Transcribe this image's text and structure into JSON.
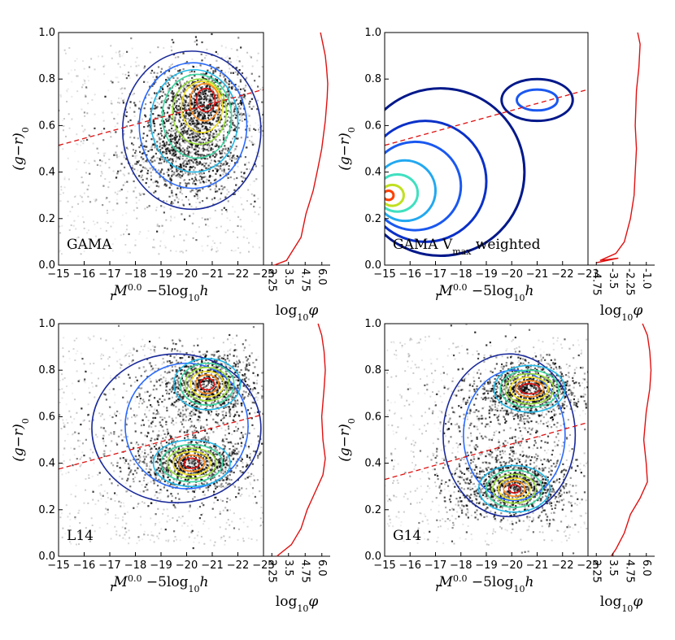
{
  "chart_data": [
    {
      "type": "scatter",
      "label": "GAMA",
      "xlabel_main": "M",
      "xlabel_sup": "0.0",
      "xlabel_sub": "r",
      "xlabel_rest": " −5log",
      "xlabel_sub2": "10",
      "xlabel_end": "h",
      "ylabel_main": "(g−r)",
      "ylabel_sub": "0",
      "xticks": [
        "−15",
        "−16",
        "−17",
        "−18",
        "−19",
        "−20",
        "−21",
        "−22",
        "−23"
      ],
      "xlim": [
        -15,
        -23
      ],
      "yticks": [
        "0.0",
        "0.2",
        "0.4",
        "0.6",
        "0.8",
        "1.0"
      ],
      "ylim": [
        0,
        1
      ],
      "side_xticks": [
        "2.25",
        "3.5",
        "4.75",
        "6.0"
      ],
      "side_xlim": [
        1.5,
        7.0
      ],
      "side_xlabel_main": "log",
      "side_xlabel_sub": "10",
      "side_xlabel_end": "φ",
      "divider": [
        [
          -15,
          0.515
        ],
        [
          -23,
          0.755
        ]
      ],
      "density": [
        {
          "x": -20.6,
          "y": 0.7,
          "sx": 0.9,
          "sy": 0.08,
          "w": 1.0
        },
        {
          "x": -20.0,
          "y": 0.48,
          "sx": 1.0,
          "sy": 0.1,
          "w": 0.8
        },
        {
          "x": -19.8,
          "y": 0.55,
          "sx": 1.6,
          "sy": 0.16,
          "w": 0.55
        }
      ],
      "contours": [
        {
          "color": "#1a2a9a",
          "cx": -20.2,
          "cy": 0.58,
          "rx": 2.7,
          "ry": 0.34
        },
        {
          "color": "#2a6aff",
          "cx": -20.25,
          "cy": 0.6,
          "rx": 2.1,
          "ry": 0.27
        },
        {
          "color": "#22b8e8",
          "cx": -20.3,
          "cy": 0.62,
          "rx": 1.7,
          "ry": 0.22
        },
        {
          "color": "#3ad6a0",
          "cx": -20.4,
          "cy": 0.64,
          "rx": 1.35,
          "ry": 0.18
        },
        {
          "color": "#9ae03a",
          "cx": -20.5,
          "cy": 0.66,
          "rx": 1.05,
          "ry": 0.14
        },
        {
          "color": "#f0e020",
          "cx": -20.6,
          "cy": 0.68,
          "rx": 0.8,
          "ry": 0.11
        },
        {
          "color": "#ff8a1a",
          "cx": -20.7,
          "cy": 0.7,
          "rx": 0.58,
          "ry": 0.08
        },
        {
          "color": "#e01010",
          "cx": -20.75,
          "cy": 0.71,
          "rx": 0.36,
          "ry": 0.05
        }
      ],
      "side_curve": [
        [
          6.2,
          1.0
        ],
        [
          6.4,
          0.95
        ],
        [
          6.6,
          0.9
        ],
        [
          6.7,
          0.85
        ],
        [
          6.8,
          0.78
        ],
        [
          6.75,
          0.72
        ],
        [
          6.6,
          0.62
        ],
        [
          6.3,
          0.5
        ],
        [
          6.0,
          0.42
        ],
        [
          5.6,
          0.32
        ],
        [
          5.0,
          0.22
        ],
        [
          4.6,
          0.12
        ],
        [
          3.4,
          0.02
        ],
        [
          2.4,
          0.0
        ]
      ]
    },
    {
      "type": "scatter",
      "label": "GAMA V",
      "label_sub": "max",
      "label_rest": " weighted",
      "xlabel_main": "M",
      "xlabel_sup": "0.0",
      "xlabel_sub": "r",
      "xlabel_rest": " −5log",
      "xlabel_sub2": "10",
      "xlabel_end": "h",
      "ylabel_main": "(g−r)",
      "ylabel_sub": "0",
      "xticks": [
        "−15",
        "−16",
        "−17",
        "−18",
        "−19",
        "−20",
        "−21",
        "−22",
        "−23"
      ],
      "xlim": [
        -15,
        -23
      ],
      "yticks": [
        "0.0",
        "0.2",
        "0.4",
        "0.6",
        "0.8",
        "1.0"
      ],
      "ylim": [
        0,
        1
      ],
      "side_xticks": [
        "-4.75",
        "-3.5",
        "-2.25",
        "-1.0"
      ],
      "side_xlim": [
        -5.5,
        0.0
      ],
      "side_xlabel_main": "log",
      "side_xlabel_sub": "10",
      "side_xlabel_end": "φ",
      "divider": [
        [
          -15,
          0.515
        ],
        [
          -23,
          0.755
        ]
      ],
      "density": [],
      "contours": [
        {
          "color": "#00188a",
          "cx": -17.2,
          "cy": 0.4,
          "rx": 3.3,
          "ry": 0.36
        },
        {
          "color": "#0a30c8",
          "cx": -16.6,
          "cy": 0.36,
          "rx": 2.4,
          "ry": 0.26
        },
        {
          "color": "#1a58f0",
          "cx": -16.2,
          "cy": 0.34,
          "rx": 1.8,
          "ry": 0.19
        },
        {
          "color": "#22a8f0",
          "cx": -15.8,
          "cy": 0.32,
          "rx": 1.2,
          "ry": 0.13
        },
        {
          "color": "#40e0c0",
          "cx": -15.5,
          "cy": 0.31,
          "rx": 0.8,
          "ry": 0.08
        },
        {
          "color": "#c0e020",
          "cx": -15.3,
          "cy": 0.3,
          "rx": 0.45,
          "ry": 0.045
        },
        {
          "color": "#ff4000",
          "cx": -15.15,
          "cy": 0.3,
          "rx": 0.2,
          "ry": 0.02
        }
      ],
      "extra_contours": [
        {
          "color": "#00188a",
          "cx": -21.0,
          "cy": 0.71,
          "rx": 1.4,
          "ry": 0.09
        },
        {
          "color": "#1a58f0",
          "cx": -21.0,
          "cy": 0.71,
          "rx": 0.8,
          "ry": 0.045
        }
      ],
      "side_curve": [
        [
          -1.4,
          1.0
        ],
        [
          -1.2,
          0.95
        ],
        [
          -1.3,
          0.85
        ],
        [
          -1.5,
          0.75
        ],
        [
          -1.6,
          0.6
        ],
        [
          -1.5,
          0.5
        ],
        [
          -1.6,
          0.4
        ],
        [
          -1.7,
          0.3
        ],
        [
          -2.0,
          0.2
        ],
        [
          -2.5,
          0.1
        ],
        [
          -3.2,
          0.05
        ],
        [
          -4.5,
          0.02
        ],
        [
          -3.0,
          0.03
        ],
        [
          -4.8,
          0.01
        ]
      ]
    },
    {
      "type": "scatter",
      "label": "L14",
      "xlabel_main": "M",
      "xlabel_sup": "0.0",
      "xlabel_sub": "r",
      "xlabel_rest": " −5log",
      "xlabel_sub2": "10",
      "xlabel_end": "h",
      "ylabel_main": "(g−r)",
      "ylabel_sub": "0",
      "xticks": [
        "−15",
        "−16",
        "−17",
        "−18",
        "−19",
        "−20",
        "−21",
        "−22",
        "−23"
      ],
      "xlim": [
        -15,
        -23
      ],
      "yticks": [
        "0.0",
        "0.2",
        "0.4",
        "0.6",
        "0.8",
        "1.0"
      ],
      "ylim": [
        0,
        1
      ],
      "side_xticks": [
        "2.25",
        "3.5",
        "4.75",
        "6.0"
      ],
      "side_xlim": [
        1.5,
        7.0
      ],
      "side_xlabel_main": "log",
      "side_xlabel_sub": "10",
      "side_xlabel_end": "φ",
      "divider": [
        [
          -15,
          0.375
        ],
        [
          -23,
          0.61
        ]
      ],
      "density": [
        {
          "x": -20.8,
          "y": 0.74,
          "sx": 0.9,
          "sy": 0.07,
          "w": 1.0
        },
        {
          "x": -20.2,
          "y": 0.4,
          "sx": 1.1,
          "sy": 0.06,
          "w": 1.0
        },
        {
          "x": -19.5,
          "y": 0.55,
          "sx": 2.0,
          "sy": 0.2,
          "w": 0.55
        }
      ],
      "contours": [
        {
          "color": "#1a2a9a",
          "cx": -19.6,
          "cy": 0.55,
          "rx": 3.3,
          "ry": 0.32
        },
        {
          "color": "#2a6aff",
          "cx": -20.0,
          "cy": 0.56,
          "rx": 2.4,
          "ry": 0.27
        }
      ],
      "twin": [
        {
          "cx": -20.8,
          "cy": 0.74,
          "rings": [
            [
              1.3,
              0.11,
              "#22b8e8"
            ],
            [
              1.05,
              0.09,
              "#3ad6a0"
            ],
            [
              0.85,
              0.072,
              "#9ae03a"
            ],
            [
              0.65,
              0.055,
              "#f0e020"
            ],
            [
              0.45,
              0.04,
              "#ff8a1a"
            ],
            [
              0.28,
              0.025,
              "#e01010"
            ]
          ]
        },
        {
          "cx": -20.2,
          "cy": 0.4,
          "rings": [
            [
              1.5,
              0.1,
              "#22b8e8"
            ],
            [
              1.2,
              0.08,
              "#3ad6a0"
            ],
            [
              0.95,
              0.065,
              "#9ae03a"
            ],
            [
              0.72,
              0.05,
              "#f0e020"
            ],
            [
              0.5,
              0.035,
              "#ff8a1a"
            ],
            [
              0.3,
              0.022,
              "#e01010"
            ]
          ]
        }
      ],
      "side_curve": [
        [
          6.0,
          1.0
        ],
        [
          6.3,
          0.95
        ],
        [
          6.5,
          0.88
        ],
        [
          6.6,
          0.8
        ],
        [
          6.5,
          0.72
        ],
        [
          6.3,
          0.6
        ],
        [
          6.4,
          0.5
        ],
        [
          6.6,
          0.42
        ],
        [
          6.4,
          0.35
        ],
        [
          5.8,
          0.28
        ],
        [
          5.1,
          0.2
        ],
        [
          4.6,
          0.12
        ],
        [
          3.8,
          0.05
        ],
        [
          2.6,
          0.0
        ]
      ]
    },
    {
      "type": "scatter",
      "label": "G14",
      "xlabel_main": "M",
      "xlabel_sup": "0.0",
      "xlabel_sub": "r",
      "xlabel_rest": " −5log",
      "xlabel_sub2": "10",
      "xlabel_end": "h",
      "ylabel_main": "(g−r)",
      "ylabel_sub": "0",
      "xticks": [
        "−15",
        "−16",
        "−17",
        "−18",
        "−19",
        "−20",
        "−21",
        "−22",
        "−23"
      ],
      "xlim": [
        -15,
        -23
      ],
      "yticks": [
        "0.0",
        "0.2",
        "0.4",
        "0.6",
        "0.8",
        "1.0"
      ],
      "ylim": [
        0,
        1
      ],
      "side_xticks": [
        "2.25",
        "3.5",
        "4.75",
        "6.0"
      ],
      "side_xlim": [
        1.5,
        7.0
      ],
      "side_xlabel_main": "log",
      "side_xlabel_sub": "10",
      "side_xlabel_end": "φ",
      "divider": [
        [
          -15,
          0.33
        ],
        [
          -23,
          0.575
        ]
      ],
      "density": [
        {
          "x": -20.6,
          "y": 0.72,
          "sx": 1.0,
          "sy": 0.06,
          "w": 1.0
        },
        {
          "x": -20.0,
          "y": 0.3,
          "sx": 1.1,
          "sy": 0.06,
          "w": 1.0
        },
        {
          "x": -19.8,
          "y": 0.5,
          "sx": 1.6,
          "sy": 0.2,
          "w": 0.6
        }
      ],
      "contours": [
        {
          "color": "#1a2a9a",
          "cx": -19.9,
          "cy": 0.52,
          "rx": 2.6,
          "ry": 0.35
        },
        {
          "color": "#2a6aff",
          "cx": -20.1,
          "cy": 0.52,
          "rx": 2.0,
          "ry": 0.28
        }
      ],
      "twin": [
        {
          "cx": -20.7,
          "cy": 0.72,
          "rings": [
            [
              1.4,
              0.1,
              "#22b8e8"
            ],
            [
              1.15,
              0.08,
              "#3ad6a0"
            ],
            [
              0.95,
              0.065,
              "#9ae03a"
            ],
            [
              0.75,
              0.05,
              "#f0e020"
            ],
            [
              0.55,
              0.035,
              "#ff8a1a"
            ],
            [
              0.4,
              0.022,
              "#e01010"
            ]
          ]
        },
        {
          "cx": -20.1,
          "cy": 0.29,
          "rings": [
            [
              1.4,
              0.1,
              "#22b8e8"
            ],
            [
              1.1,
              0.08,
              "#3ad6a0"
            ],
            [
              0.85,
              0.062,
              "#9ae03a"
            ],
            [
              0.62,
              0.046,
              "#f0e020"
            ],
            [
              0.42,
              0.032,
              "#ff8a1a"
            ],
            [
              0.22,
              0.018,
              "#e01010"
            ]
          ]
        }
      ],
      "side_curve": [
        [
          6.0,
          1.0
        ],
        [
          6.4,
          0.95
        ],
        [
          6.6,
          0.88
        ],
        [
          6.7,
          0.8
        ],
        [
          6.6,
          0.72
        ],
        [
          6.3,
          0.62
        ],
        [
          6.1,
          0.5
        ],
        [
          6.3,
          0.4
        ],
        [
          6.4,
          0.32
        ],
        [
          5.8,
          0.25
        ],
        [
          5.0,
          0.18
        ],
        [
          4.5,
          0.1
        ],
        [
          3.8,
          0.03
        ],
        [
          3.4,
          0.0
        ]
      ]
    }
  ]
}
